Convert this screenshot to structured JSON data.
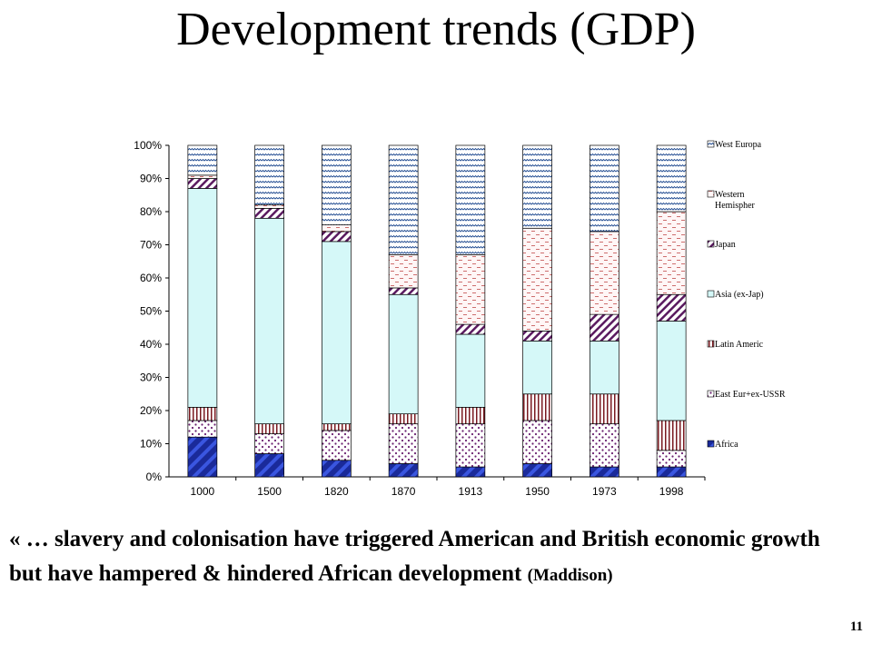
{
  "slide": {
    "title": "Development trends (GDP)",
    "quote_main": "« … slavery and colonisation have triggered American and British economic growth  but have hampered & hindered African development",
    "quote_source": "(Maddison)",
    "page_number": "11"
  },
  "chart_data": {
    "type": "bar",
    "stacked": true,
    "percent": true,
    "categories": [
      "1000",
      "1500",
      "1820",
      "1870",
      "1913",
      "1950",
      "1973",
      "1998"
    ],
    "ylim": [
      0,
      100
    ],
    "yticks": [
      "0%",
      "10%",
      "20%",
      "30%",
      "40%",
      "50%",
      "60%",
      "70%",
      "80%",
      "90%",
      "100%"
    ],
    "legend_position": "right",
    "series": [
      {
        "name": "Africa",
        "color": "#1f2fa8",
        "pattern": "wide-diagonal",
        "values": [
          12,
          7,
          5,
          4,
          3,
          4,
          3,
          3
        ]
      },
      {
        "name": "East Eur+ex-USSR",
        "color": "#6a2070",
        "pattern": "dots",
        "values": [
          5,
          6,
          9,
          12,
          13,
          13,
          13,
          5
        ]
      },
      {
        "name": "Latin Americ",
        "color": "#7a1a20",
        "pattern": "vertical-stripes",
        "values": [
          4,
          3,
          2,
          3,
          5,
          8,
          9,
          9
        ]
      },
      {
        "name": "Asia (ex-Jap)",
        "color": "#d5f8f8",
        "pattern": "solid",
        "values": [
          66,
          62,
          55,
          36,
          22,
          16,
          16,
          30
        ]
      },
      {
        "name": "Japan",
        "color": "#5a1a60",
        "pattern": "diagonal",
        "values": [
          3,
          3,
          3,
          2,
          3,
          3,
          8,
          8
        ]
      },
      {
        "name": "Western Hemispher",
        "color": "#c86060",
        "pattern": "dashes",
        "values": [
          1,
          1,
          2,
          10,
          21,
          31,
          25,
          25
        ]
      },
      {
        "name": "West Europa",
        "color": "#1f4a90",
        "pattern": "waves",
        "values": [
          9,
          18,
          24,
          33,
          33,
          25,
          26,
          20
        ]
      }
    ]
  }
}
